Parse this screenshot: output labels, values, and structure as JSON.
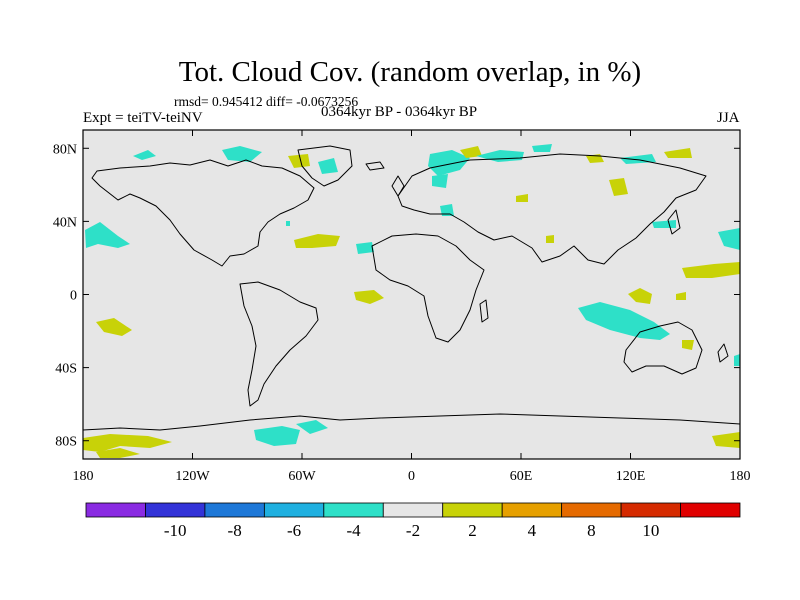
{
  "header": {
    "title": "Tot. Cloud Cov. (random overlap, in %)",
    "stats": "rmsd= 0.945412 diff= -0.0673256",
    "experiment": "Expt = teiTV-teiNV",
    "period": "0364kyr BP - 0364kyr BP",
    "season": "JJA"
  },
  "map": {
    "projection": "cylindrical equidistant",
    "lon_range": [
      -180,
      180
    ],
    "lat_range": [
      -90,
      90
    ],
    "x_ticks": [
      "180",
      "120W",
      "60W",
      "0",
      "60E",
      "120E",
      "180"
    ],
    "y_ticks": [
      "80N",
      "40N",
      "0",
      "40S",
      "80S"
    ],
    "background_color": "#e6e6e6"
  },
  "colorbar": {
    "labels": [
      "-10",
      "-8",
      "-6",
      "-4",
      "-2",
      "2",
      "4",
      "8",
      "10"
    ],
    "colors": [
      "#8a2be2",
      "#3333d8",
      "#1e78d8",
      "#1fb0e0",
      "#2ee0c8",
      "#e6e6e6",
      "#c8d208",
      "#e6a000",
      "#e56a00",
      "#d52a00",
      "#e00000"
    ]
  }
}
